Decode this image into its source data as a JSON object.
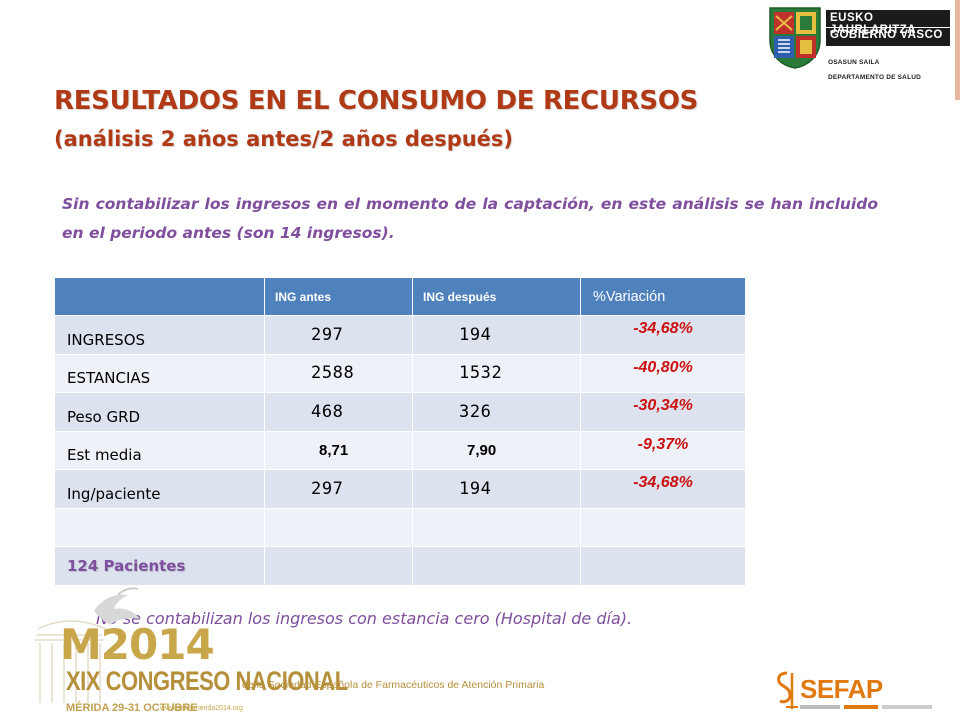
{
  "header": {
    "gov_line1": "EUSKO JAURLARITZA",
    "gov_line2": "GOBIERNO VASCO",
    "dept_line1": "OSASUN SAILA",
    "dept_line2": "DEPARTAMENTO DE SALUD"
  },
  "title": "RESULTADOS EN EL CONSUMO DE RECURSOS",
  "subtitle": "(análisis 2 años antes/2 años después)",
  "intro": "Sin contabilizar los ingresos en el momento de la captación, en este análisis se han incluido en el periodo antes (son 14 ingresos).",
  "table": {
    "headers": [
      "",
      "ING antes",
      "ING después",
      "%Variación"
    ],
    "rows": [
      {
        "label": "INGRESOS",
        "antes": "297",
        "despues": "194",
        "variacion": "-34,68%"
      },
      {
        "label": "ESTANCIAS",
        "antes": "2588",
        "despues": "1532",
        "variacion": "-40,80%"
      },
      {
        "label": "Peso GRD",
        "antes": "468",
        "despues": "326",
        "variacion": "-30,34%"
      },
      {
        "label": "Est media",
        "antes": "8,71",
        "despues": "7,90",
        "variacion": "-9,37%"
      },
      {
        "label": "Ing/paciente",
        "antes": "297",
        "despues": "194",
        "variacion": "-34,68%"
      }
    ],
    "patients_label": "124 Pacientes"
  },
  "note": "No se contabilizan los ingresos con estancia cero (Hospital de día).",
  "footer": {
    "congress_year": "M2014",
    "congress_name": "XIX CONGRESO NACIONAL",
    "congress_sub": "de la Sociedad Española de Farmacéuticos de Atención Primaria",
    "congress_date": "MÉRIDA 29-31 OCTUBRE",
    "congress_web": "www.sefapmerida2014.org",
    "sefap_label": "SEFAP"
  },
  "colors": {
    "title": "#b03a16",
    "accent_text": "#7f4f9e",
    "table_header": "#4f81bd",
    "variation": "#cc1010",
    "sefap": "#e07a10"
  }
}
